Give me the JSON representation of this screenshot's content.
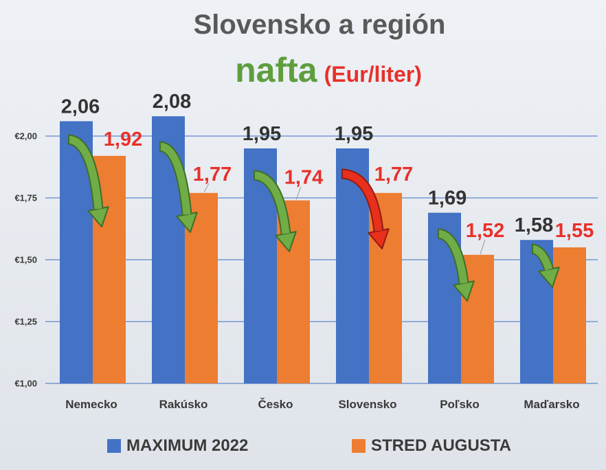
{
  "chart_data": {
    "type": "bar",
    "title": "Slovensko a región",
    "subtitle": "nafta",
    "unit": "(Eur/liter)",
    "xlabel": "",
    "ylabel": "",
    "categories": [
      "Nemecko",
      "Rakúsko",
      "Česko",
      "Slovensko",
      "Poľsko",
      "Maďarsko"
    ],
    "series": [
      {
        "name": "MAXIMUM 2022",
        "values": [
          2.06,
          2.08,
          1.95,
          1.95,
          1.69,
          1.58
        ]
      },
      {
        "name": "STRED AUGUSTA",
        "values": [
          1.92,
          1.77,
          1.74,
          1.77,
          1.52,
          1.55
        ]
      }
    ],
    "ylim": [
      1.0,
      2.0
    ],
    "y_ticks": [
      1.0,
      1.25,
      1.5,
      1.75,
      2.0
    ],
    "y_tick_labels": [
      "€1,00",
      "€1,25",
      "€1,50",
      "€1,75",
      "€2,00"
    ],
    "grid": true,
    "legend": "bottom",
    "data_labels": true,
    "arrow_icon": "curved-down-arrow-icon",
    "arrow_colors": [
      "green",
      "green",
      "green",
      "red",
      "green",
      "green"
    ]
  },
  "colors": {
    "title": "#595959",
    "subtitle": "#5e9e3e",
    "unit": "#e8302a",
    "series": [
      "#4472c4",
      "#ed7d31"
    ],
    "data_label": [
      "#333333",
      "#e8302a"
    ],
    "gridline": "#4a74c4",
    "axis_text": "#383838",
    "leader_line": "#9a9a9a",
    "arrow_fill": {
      "green": "#70ad47",
      "red": "#e8301c"
    },
    "arrow_outline": {
      "green": "#3f6e2a",
      "red": "#8e1c12"
    }
  }
}
